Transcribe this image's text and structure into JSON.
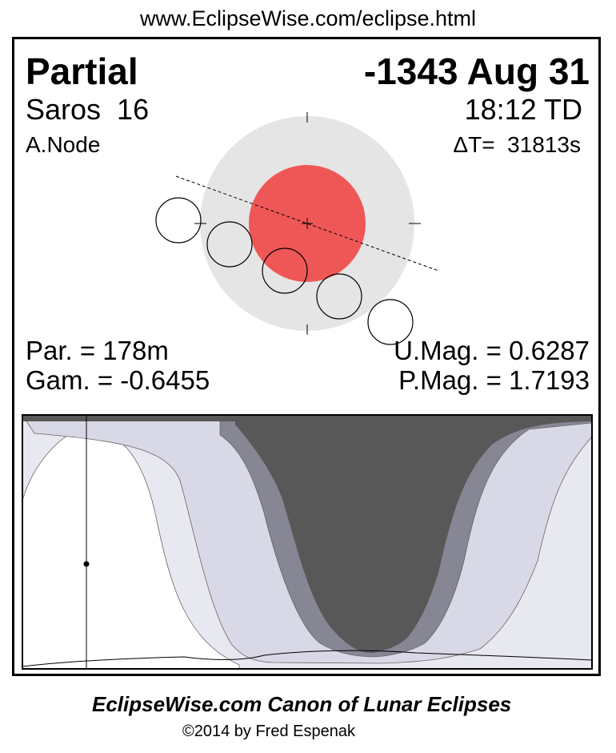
{
  "header_url": "www.EclipseWise.com/eclipse.html",
  "eclipse": {
    "type": "Partial",
    "date": "-1343 Aug 31",
    "saros": "Saros  16",
    "time": "18:12 TD",
    "node": "A.Node",
    "delta_t": "ΔT=  31813s",
    "par": "Par. = 178m",
    "gam": "Gam. = -0.6455",
    "umag": "U.Mag. = 0.6287",
    "pmag": "P.Mag. = 1.7193"
  },
  "colors": {
    "umbra": "#ef5757",
    "penumbra": "#e5e5e5",
    "map_dark": "#585858",
    "map_gray": "#868694",
    "map_light": "#d8d8e6",
    "map_lightest": "#e8e8f0"
  },
  "footer": {
    "title": "EclipseWise.com Canon of Lunar Eclipses",
    "copyright": "©2014 by Fred Espenak"
  }
}
